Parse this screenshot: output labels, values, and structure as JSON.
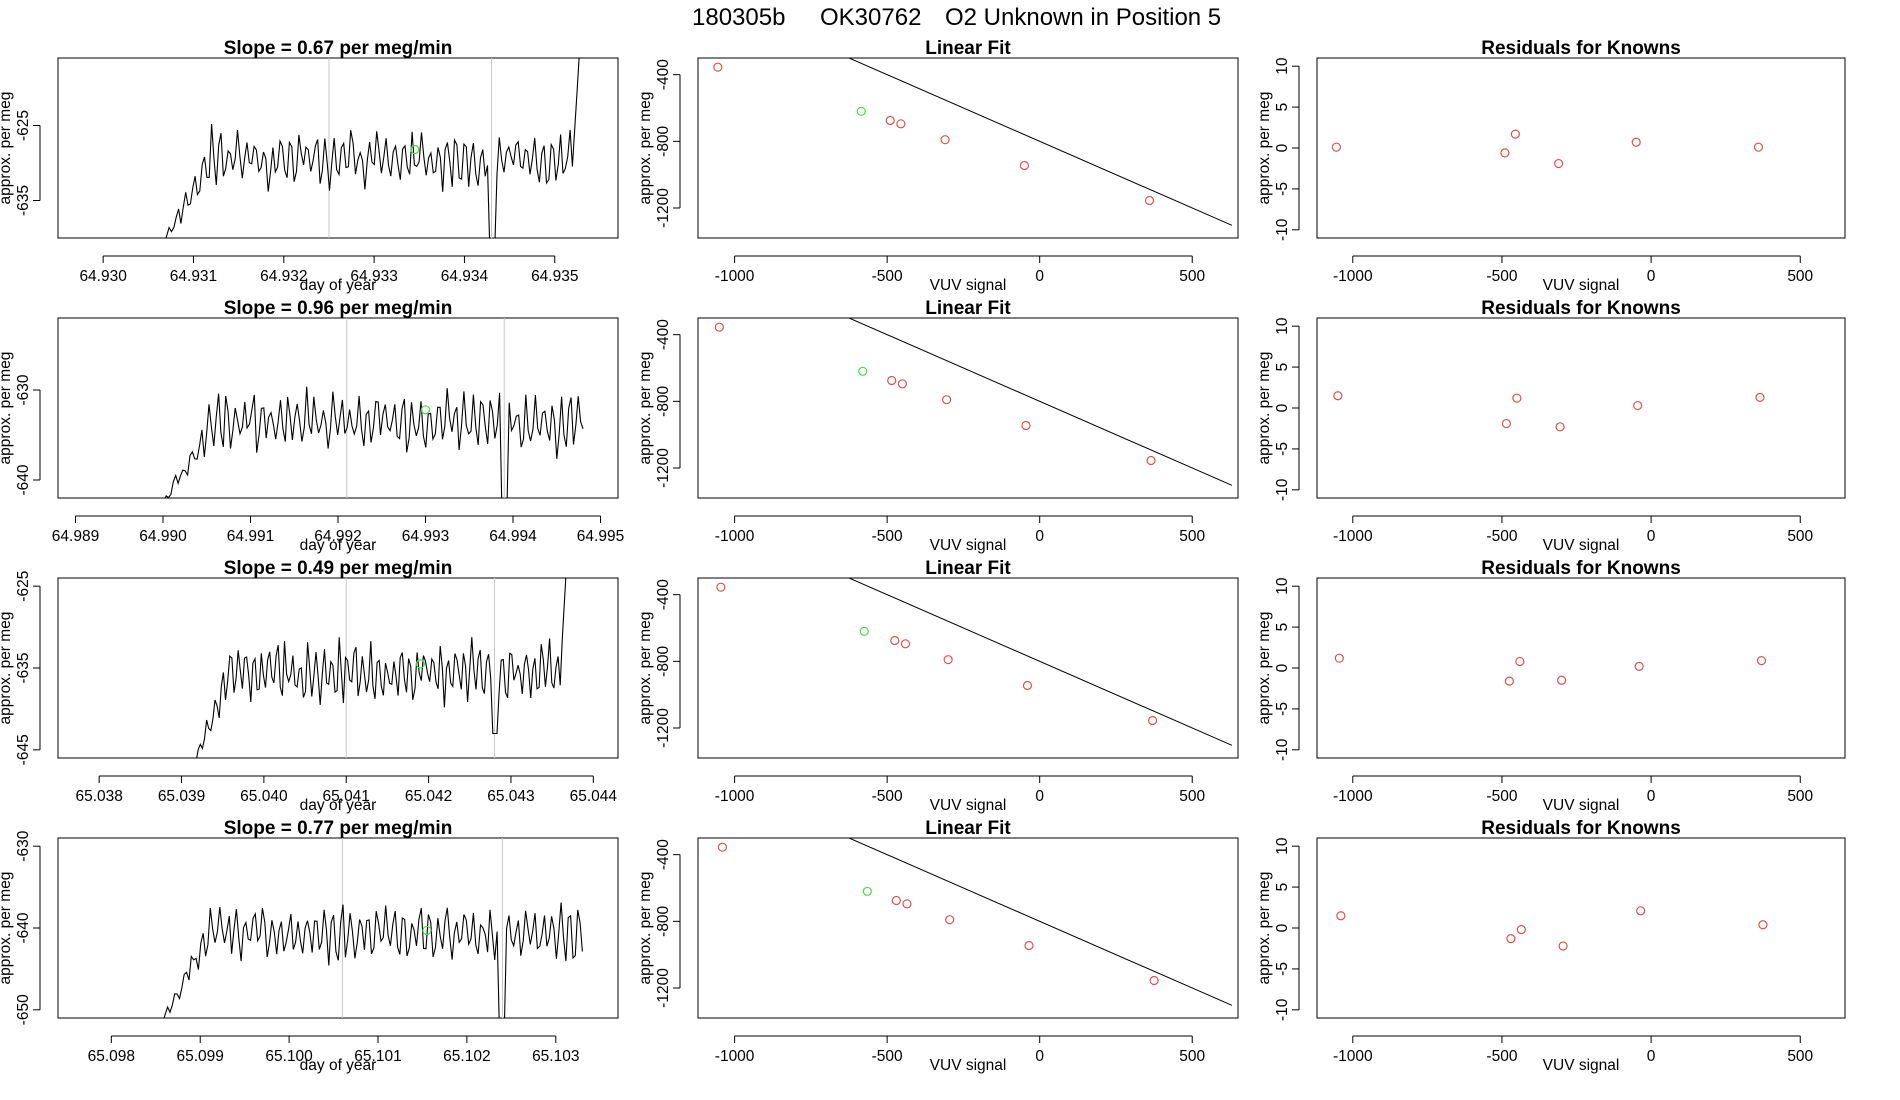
{
  "figure": {
    "title_parts": [
      "180305b",
      "OK30762",
      "O2 Unknown in Position  5"
    ]
  },
  "style": {
    "trace_color": "#000000",
    "marker_known_color": "#e05050",
    "marker_unknown_color": "#44dd44",
    "vline_color": "#c8c8c8"
  },
  "chart_data": [
    {
      "type": "line",
      "title": "Slope =  0.67  per meg/min",
      "xlabel": "day of year",
      "ylabel": "approx. per meg",
      "xlim": [
        64.9295,
        64.9357
      ],
      "ylim": [
        -640,
        -616
      ],
      "x_ticks": [
        "64.930",
        "64.931",
        "64.932",
        "64.933",
        "64.934",
        "64.935"
      ],
      "y_ticks": [
        "-635",
        "-625"
      ],
      "vlines": [
        64.9325,
        64.9343
      ],
      "trace": {
        "start": 64.9306,
        "end": 64.9353,
        "base": -629.5,
        "amp": 3.3,
        "ramp_end": 64.9312,
        "drop_at": 64.9343,
        "drop_depth": -642,
        "rise_at": 64.9352
      },
      "unknown_point": {
        "x": 64.93345,
        "y": -628.2
      }
    },
    {
      "type": "scatter",
      "title": "Linear Fit",
      "xlabel": "VUV signal",
      "ylabel": "approx. per meg",
      "xlim": [
        -1120,
        650
      ],
      "ylim": [
        -1380,
        -300
      ],
      "x_ticks": [
        "-1000",
        "-500",
        "0",
        "500"
      ],
      "y_ticks": [
        "-400",
        "-800",
        "-1200"
      ],
      "fit_line": {
        "slope": -0.8,
        "intercept": -800,
        "x_from": -1085,
        "x_to": 630
      },
      "known_points": [
        {
          "x": -1055,
          "y": -355
        },
        {
          "x": -490,
          "y": -675
        },
        {
          "x": -455,
          "y": -695
        },
        {
          "x": -310,
          "y": -790
        },
        {
          "x": -50,
          "y": -945
        },
        {
          "x": 360,
          "y": -1155
        }
      ],
      "unknown_points": [
        {
          "x": -585,
          "y": -620
        }
      ]
    },
    {
      "type": "scatter",
      "title": "Residuals for Knowns",
      "xlabel": "VUV signal",
      "ylabel": "approx. per meg",
      "xlim": [
        -1120,
        650
      ],
      "ylim": [
        -11,
        11
      ],
      "x_ticks": [
        "-1000",
        "-500",
        "0",
        "500"
      ],
      "y_ticks": [
        "-10",
        "-5",
        "0",
        "5",
        "10"
      ],
      "known_points": [
        {
          "x": -1055,
          "y": 0.1
        },
        {
          "x": -490,
          "y": -0.6
        },
        {
          "x": -455,
          "y": 1.7
        },
        {
          "x": -310,
          "y": -1.9
        },
        {
          "x": -50,
          "y": 0.7
        },
        {
          "x": 360,
          "y": 0.1
        }
      ]
    },
    {
      "type": "line",
      "title": "Slope =  0.96  per meg/min",
      "xlabel": "day of year",
      "ylabel": "approx. per meg",
      "xlim": [
        64.9888,
        64.9952
      ],
      "ylim": [
        -642,
        -622
      ],
      "x_ticks": [
        "64.989",
        "64.990",
        "64.991",
        "64.992",
        "64.993",
        "64.994",
        "64.995"
      ],
      "y_ticks": [
        "-640",
        "-630"
      ],
      "vlines": [
        64.9921,
        64.9939
      ],
      "trace": {
        "start": 64.9899,
        "end": 64.9948,
        "base": -633.5,
        "amp": 3.0,
        "ramp_end": 64.9906,
        "drop_at": 64.9939,
        "drop_depth": -644,
        "rise_at": 0
      },
      "unknown_point": {
        "x": 64.993,
        "y": -632.2
      }
    },
    {
      "type": "scatter",
      "title": "Linear Fit",
      "xlabel": "VUV signal",
      "ylabel": "approx. per meg",
      "xlim": [
        -1120,
        650
      ],
      "ylim": [
        -1380,
        -300
      ],
      "x_ticks": [
        "-1000",
        "-500",
        "0",
        "500"
      ],
      "y_ticks": [
        "-400",
        "-800",
        "-1200"
      ],
      "fit_line": {
        "slope": -0.8,
        "intercept": -800,
        "x_from": -1085,
        "x_to": 630
      },
      "known_points": [
        {
          "x": -1050,
          "y": -355
        },
        {
          "x": -485,
          "y": -675
        },
        {
          "x": -450,
          "y": -695
        },
        {
          "x": -305,
          "y": -790
        },
        {
          "x": -45,
          "y": -945
        },
        {
          "x": 365,
          "y": -1155
        }
      ],
      "unknown_points": [
        {
          "x": -580,
          "y": -620
        }
      ]
    },
    {
      "type": "scatter",
      "title": "Residuals for Knowns",
      "xlabel": "VUV signal",
      "ylabel": "approx. per meg",
      "xlim": [
        -1120,
        650
      ],
      "ylim": [
        -11,
        11
      ],
      "x_ticks": [
        "-1000",
        "-500",
        "0",
        "500"
      ],
      "y_ticks": [
        "-10",
        "-5",
        "0",
        "5",
        "10"
      ],
      "known_points": [
        {
          "x": -1050,
          "y": 1.5
        },
        {
          "x": -485,
          "y": -1.9
        },
        {
          "x": -450,
          "y": 1.2
        },
        {
          "x": -305,
          "y": -2.3
        },
        {
          "x": -45,
          "y": 0.3
        },
        {
          "x": 365,
          "y": 1.3
        }
      ]
    },
    {
      "type": "line",
      "title": "Slope =  0.49  per meg/min",
      "xlabel": "day of year",
      "ylabel": "approx. per meg",
      "xlim": [
        65.0375,
        65.0443
      ],
      "ylim": [
        -646,
        -624
      ],
      "x_ticks": [
        "65.038",
        "65.039",
        "65.040",
        "65.041",
        "65.042",
        "65.043",
        "65.044"
      ],
      "y_ticks": [
        "-645",
        "-635",
        "-625"
      ],
      "vlines": [
        65.041,
        65.0428
      ],
      "trace": {
        "start": 65.0391,
        "end": 65.0437,
        "base": -635.5,
        "amp": 3.2,
        "ramp_end": 65.0396,
        "drop_at": 65.0428,
        "drop_depth": -643,
        "rise_at": 65.0436
      },
      "unknown_point": {
        "x": 65.0419,
        "y": -634.5
      }
    },
    {
      "type": "scatter",
      "title": "Linear Fit",
      "xlabel": "VUV signal",
      "ylabel": "approx. per meg",
      "xlim": [
        -1120,
        650
      ],
      "ylim": [
        -1380,
        -300
      ],
      "x_ticks": [
        "-1000",
        "-500",
        "0",
        "500"
      ],
      "y_ticks": [
        "-400",
        "-800",
        "-1200"
      ],
      "fit_line": {
        "slope": -0.8,
        "intercept": -800,
        "x_from": -1085,
        "x_to": 630
      },
      "known_points": [
        {
          "x": -1045,
          "y": -355
        },
        {
          "x": -475,
          "y": -675
        },
        {
          "x": -440,
          "y": -695
        },
        {
          "x": -300,
          "y": -790
        },
        {
          "x": -40,
          "y": -945
        },
        {
          "x": 370,
          "y": -1155
        }
      ],
      "unknown_points": [
        {
          "x": -575,
          "y": -620
        }
      ]
    },
    {
      "type": "scatter",
      "title": "Residuals for Knowns",
      "xlabel": "VUV signal",
      "ylabel": "approx. per meg",
      "xlim": [
        -1120,
        650
      ],
      "ylim": [
        -11,
        11
      ],
      "x_ticks": [
        "-1000",
        "-500",
        "0",
        "500"
      ],
      "y_ticks": [
        "-10",
        "-5",
        "0",
        "5",
        "10"
      ],
      "known_points": [
        {
          "x": -1045,
          "y": 1.2
        },
        {
          "x": -475,
          "y": -1.6
        },
        {
          "x": -440,
          "y": 0.8
        },
        {
          "x": -300,
          "y": -1.5
        },
        {
          "x": -40,
          "y": 0.2
        },
        {
          "x": 370,
          "y": 0.9
        }
      ]
    },
    {
      "type": "line",
      "title": "Slope =  0.77  per meg/min",
      "xlabel": "day of year",
      "ylabel": "approx. per meg",
      "xlim": [
        65.0974,
        65.1037
      ],
      "ylim": [
        -651,
        -629
      ],
      "x_ticks": [
        "65.098",
        "65.099",
        "65.100",
        "65.101",
        "65.102",
        "65.103"
      ],
      "y_ticks": [
        "-650",
        "-640",
        "-630"
      ],
      "vlines": [
        65.1006,
        65.1024
      ],
      "trace": {
        "start": 65.0985,
        "end": 65.1033,
        "base": -640.5,
        "amp": 3.0,
        "ramp_end": 65.0991,
        "drop_at": 65.1024,
        "drop_depth": -653,
        "rise_at": 0
      },
      "unknown_point": {
        "x": 65.10155,
        "y": -640.3
      }
    },
    {
      "type": "scatter",
      "title": "Linear Fit",
      "xlabel": "VUV signal",
      "ylabel": "approx. per meg",
      "xlim": [
        -1120,
        650
      ],
      "ylim": [
        -1380,
        -300
      ],
      "x_ticks": [
        "-1000",
        "-500",
        "0",
        "500"
      ],
      "y_ticks": [
        "-400",
        "-800",
        "-1200"
      ],
      "fit_line": {
        "slope": -0.8,
        "intercept": -800,
        "x_from": -1085,
        "x_to": 630
      },
      "known_points": [
        {
          "x": -1040,
          "y": -355
        },
        {
          "x": -470,
          "y": -675
        },
        {
          "x": -435,
          "y": -695
        },
        {
          "x": -295,
          "y": -790
        },
        {
          "x": -35,
          "y": -945
        },
        {
          "x": 375,
          "y": -1155
        }
      ],
      "unknown_points": [
        {
          "x": -565,
          "y": -620
        }
      ]
    },
    {
      "type": "scatter",
      "title": "Residuals for Knowns",
      "xlabel": "VUV signal",
      "ylabel": "approx. per meg",
      "xlim": [
        -1120,
        650
      ],
      "ylim": [
        -11,
        11
      ],
      "x_ticks": [
        "-1000",
        "-500",
        "0",
        "500"
      ],
      "y_ticks": [
        "-10",
        "-5",
        "0",
        "5",
        "10"
      ],
      "known_points": [
        {
          "x": -1040,
          "y": 1.5
        },
        {
          "x": -470,
          "y": -1.3
        },
        {
          "x": -435,
          "y": -0.2
        },
        {
          "x": -295,
          "y": -2.2
        },
        {
          "x": -35,
          "y": 2.1
        },
        {
          "x": 375,
          "y": 0.4
        }
      ]
    }
  ]
}
